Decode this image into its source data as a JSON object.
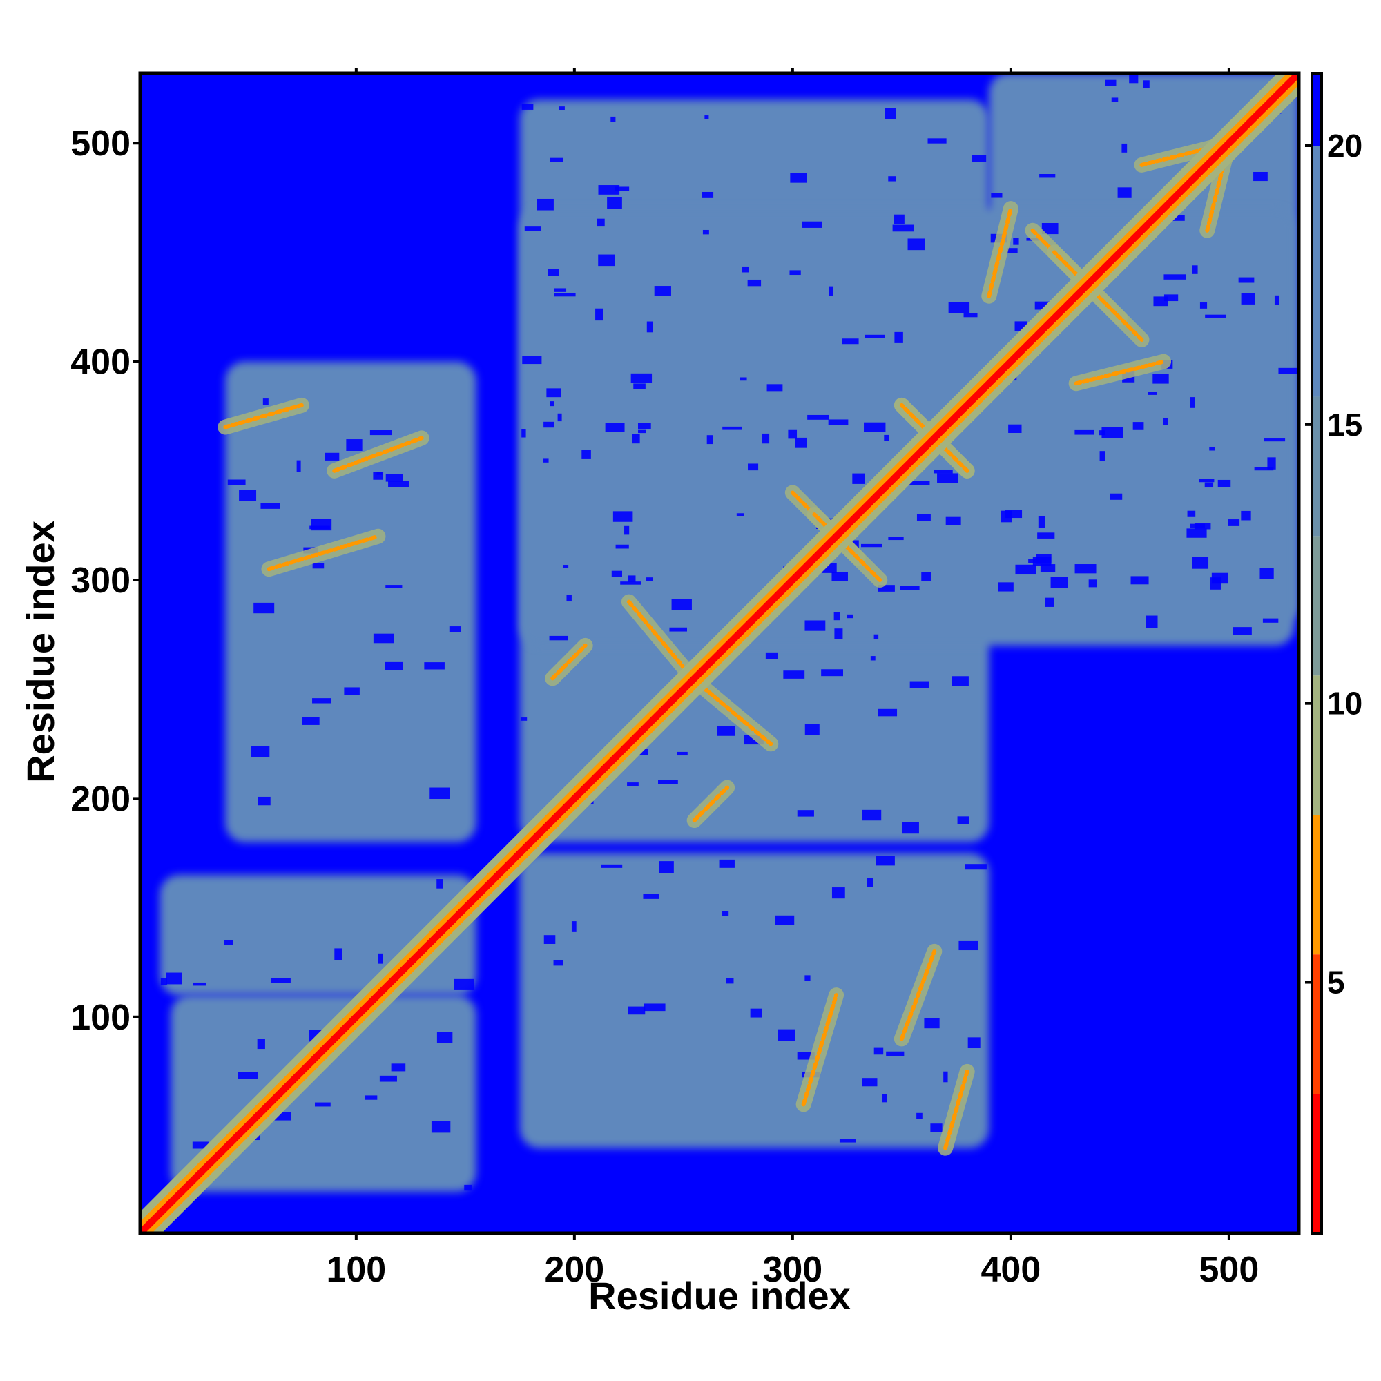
{
  "chart_data": {
    "type": "heatmap",
    "title": "",
    "xlabel": "Residue index",
    "ylabel": "Residue index",
    "xlim": [
      1,
      532
    ],
    "ylim": [
      1,
      532
    ],
    "xticks": [
      100,
      200,
      300,
      400,
      500
    ],
    "yticks": [
      100,
      200,
      300,
      400,
      500
    ],
    "colorbar": {
      "range": [
        0.5,
        21.3
      ],
      "ticks": [
        5,
        10,
        15,
        20
      ],
      "bands": [
        {
          "from": 0.5,
          "to": 3.0,
          "color": "#ff0000"
        },
        {
          "from": 3.0,
          "to": 5.5,
          "color": "#ff4000"
        },
        {
          "from": 5.5,
          "to": 8.0,
          "color": "#ff9900"
        },
        {
          "from": 8.0,
          "to": 10.5,
          "color": "#a3b380"
        },
        {
          "from": 10.5,
          "to": 13.0,
          "color": "#7d9a98"
        },
        {
          "from": 13.0,
          "to": 15.5,
          "color": "#6a8fa9"
        },
        {
          "from": 15.5,
          "to": 20.0,
          "color": "#5e88bd"
        },
        {
          "from": 20.0,
          "to": 21.3,
          "color": "#0000ff"
        }
      ]
    },
    "background_value": 21,
    "contact_regions": [
      {
        "x": [
          1,
          532
        ],
        "y": [
          1,
          532
        ],
        "kind": "diagonal",
        "value": 1
      },
      {
        "x": [
          40,
          155
        ],
        "y": [
          180,
          400
        ],
        "value": 17
      },
      {
        "x": [
          10,
          155
        ],
        "y": [
          110,
          165
        ],
        "value": 17
      },
      {
        "x": [
          15,
          155
        ],
        "y": [
          20,
          110
        ],
        "value": 17
      },
      {
        "x": [
          175,
          390
        ],
        "y": [
          180,
          520
        ],
        "value": 17
      },
      {
        "x": [
          175,
          390
        ],
        "y": [
          40,
          175
        ],
        "value": 17
      },
      {
        "x": [
          390,
          532
        ],
        "y": [
          280,
          532
        ],
        "value": 17
      },
      {
        "x": [
          175,
          530
        ],
        "y": [
          270,
          470
        ],
        "value": 17
      }
    ],
    "contact_features": [
      {
        "kind": "antiparallel",
        "x": [
          225,
          250
        ],
        "y": [
          260,
          290
        ],
        "value": 6
      },
      {
        "kind": "antiparallel",
        "x": [
          300,
          330
        ],
        "y": [
          310,
          340
        ],
        "value": 6
      },
      {
        "kind": "antiparallel",
        "x": [
          350,
          380
        ],
        "y": [
          350,
          380
        ],
        "value": 6
      },
      {
        "kind": "antiparallel",
        "x": [
          410,
          450
        ],
        "y": [
          420,
          460
        ],
        "value": 6
      },
      {
        "kind": "parallel",
        "x": [
          40,
          75
        ],
        "y": [
          370,
          380
        ],
        "value": 7
      },
      {
        "kind": "parallel",
        "x": [
          90,
          130
        ],
        "y": [
          350,
          365
        ],
        "value": 7
      },
      {
        "kind": "parallel",
        "x": [
          60,
          110
        ],
        "y": [
          305,
          320
        ],
        "value": 7
      },
      {
        "kind": "parallel",
        "x": [
          255,
          270
        ],
        "y": [
          190,
          205
        ],
        "value": 6
      },
      {
        "kind": "parallel",
        "x": [
          430,
          470
        ],
        "y": [
          390,
          400
        ],
        "value": 7
      },
      {
        "kind": "parallel",
        "x": [
          460,
          500
        ],
        "y": [
          490,
          500
        ],
        "value": 7
      }
    ]
  }
}
